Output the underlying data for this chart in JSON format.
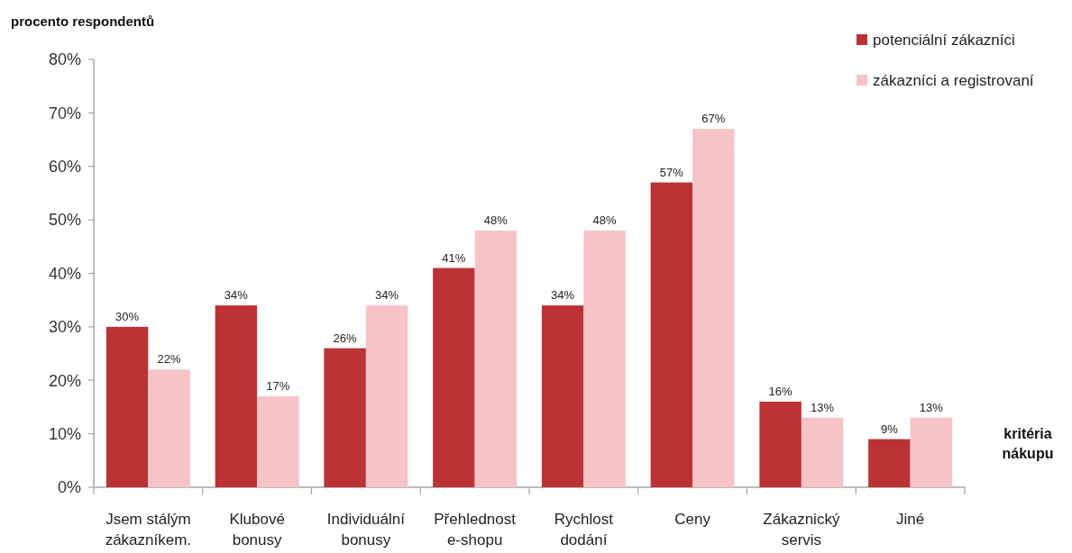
{
  "chart_data": {
    "type": "bar",
    "ylabel": "procento respondentů",
    "xlabel": "kritéria nákupu",
    "categories": [
      "Jsem stálým zákazníkem.",
      "Klubové bonusy",
      "Individuální bonusy",
      "Přehlednost e-shopu",
      "Rychlost dodání",
      "Ceny",
      "Zákaznický servis",
      "Jiné"
    ],
    "series": [
      {
        "name": "potenciální zákazníci",
        "color": "#bb3335",
        "values": [
          30,
          34,
          26,
          41,
          34,
          57,
          16,
          9
        ],
        "value_labels": [
          "30%",
          "34%",
          "26%",
          "41%",
          "34%",
          "57%",
          "16%",
          "9%"
        ]
      },
      {
        "name": "zákazníci a registrovaní",
        "color": "#f7c3c6",
        "values": [
          22,
          17,
          34,
          48,
          48,
          67,
          13,
          13
        ],
        "value_labels": [
          "22%",
          "17%",
          "34%",
          "48%",
          "48%",
          "67%",
          "13%",
          "13%"
        ]
      }
    ],
    "ylim": [
      0,
      80
    ],
    "yticks": [
      {
        "value": 0,
        "label": "0%"
      },
      {
        "value": 10,
        "label": "10%"
      },
      {
        "value": 20,
        "label": "20%"
      },
      {
        "value": 30,
        "label": "30%"
      },
      {
        "value": 40,
        "label": "40%"
      },
      {
        "value": 50,
        "label": "50%"
      },
      {
        "value": 60,
        "label": "60%"
      },
      {
        "value": 70,
        "label": "70%"
      },
      {
        "value": 80,
        "label": "80%"
      }
    ],
    "legend": "top right"
  }
}
